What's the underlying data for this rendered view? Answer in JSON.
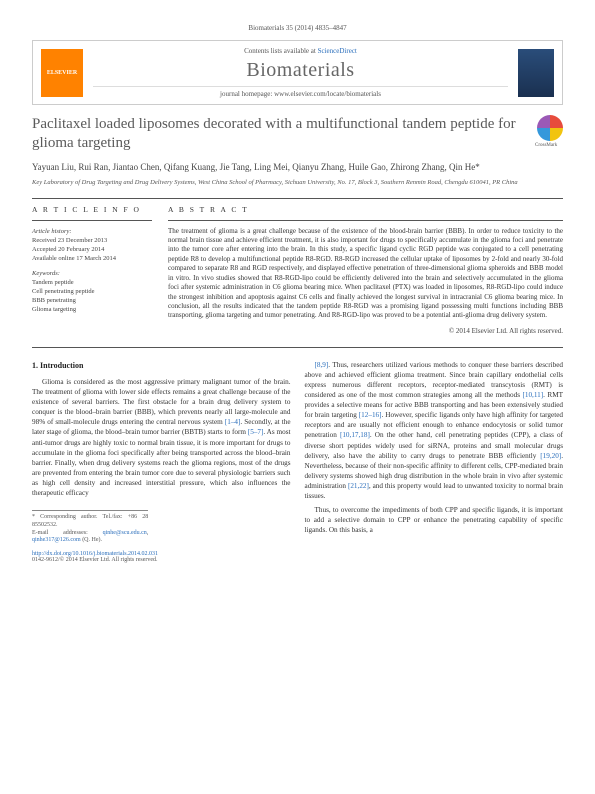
{
  "top": {
    "citation": "Biomaterials 35 (2014) 4835–4847"
  },
  "header": {
    "contents_prefix": "Contents lists available at ",
    "contents_link": "ScienceDirect",
    "journal": "Biomaterials",
    "homepage_prefix": "journal homepage: ",
    "homepage_url": "www.elsevier.com/locate/biomaterials",
    "publisher": "ELSEVIER"
  },
  "article": {
    "title": "Paclitaxel loaded liposomes decorated with a multifunctional tandem peptide for glioma targeting",
    "authors": "Yayuan Liu, Rui Ran, Jiantao Chen, Qifang Kuang, Jie Tang, Ling Mei, Qianyu Zhang, Huile Gao, Zhirong Zhang, Qin He*",
    "affiliation": "Key Laboratory of Drug Targeting and Drug Delivery Systems, West China School of Pharmacy, Sichuan University, No. 17, Block 3, Southern Renmin Road, Chengdu 610041, PR China"
  },
  "info": {
    "heading": "A R T I C L E   I N F O",
    "history_label": "Article history:",
    "received": "Received 23 December 2013",
    "accepted": "Accepted 20 February 2014",
    "online": "Available online 17 March 2014",
    "keywords_label": "Keywords:",
    "kw1": "Tandem peptide",
    "kw2": "Cell penetrating peptide",
    "kw3": "BBB penetrating",
    "kw4": "Glioma targeting"
  },
  "abstract": {
    "heading": "A B S T R A C T",
    "text": "The treatment of glioma is a great challenge because of the existence of the blood-brain barrier (BBB). In order to reduce toxicity to the normal brain tissue and achieve efficient treatment, it is also important for drugs to specifically accumulate in the glioma foci and penetrate into the tumor core after entering into the brain. In this study, a specific ligand cyclic RGD peptide was conjugated to a cell penetrating peptide R8 to develop a multifunctional peptide R8-RGD. R8-RGD increased the cellular uptake of liposomes by 2-fold and nearly 30-fold compared to separate R8 and RGD respectively, and displayed effective penetration of three-dimensional glioma spheroids and BBB model in vitro. In vivo studies showed that R8-RGD-lipo could be efficiently delivered into the brain and selectively accumulated in the glioma foci after systemic administration in C6 glioma bearing mice. When paclitaxel (PTX) was loaded in liposomes, R8-RGD-lipo could induce the strongest inhibition and apoptosis against C6 cells and finally achieved the longest survival in intracranial C6 glioma bearing mice. In conclusion, all the results indicated that the tandem peptide R8-RGD was a promising ligand possessing multi functions including BBB transporting, glioma targeting and tumor penetrating. And R8-RGD-lipo was proved to be a potential anti-glioma drug delivery system.",
    "copyright": "© 2014 Elsevier Ltd. All rights reserved."
  },
  "body": {
    "section1_head": "1. Introduction",
    "col1_p1a": "Glioma is considered as the most aggressive primary malignant tumor of the brain. The treatment of glioma with lower side effects remains a great challenge because of the existence of several barriers. The first obstacle for a brain drug delivery system to conquer is the blood–brain barrier (BBB), which prevents nearly all large-molecule and 98% of small-molecule drugs entering the central nervous system ",
    "ref1": "[1–4]",
    "col1_p1b": ". Secondly, at the later stage of glioma, the blood–brain tumor barrier (BBTB) starts to form ",
    "ref2": "[5–7]",
    "col1_p1c": ". As most anti-tumor drugs are highly toxic to normal brain tissue, it is more important for drugs to accumulate in the glioma foci specifically after being transported across the blood–brain barrier. Finally, when drug delivery systems reach the glioma regions, most of the drugs are prevented from entering the brain tumor core due to several physiologic barriers such as high cell density and increased interstitial pressure, which also influences the therapeutic efficacy",
    "ref3": "[8,9]",
    "col2_p1a": ". Thus, researchers utilized various methods to conquer these barriers described above and achieved efficient glioma treatment. Since brain capillary endothelial cells express numerous different receptors, receptor-mediated transcytosis (RMT) is considered as one of the most common strategies among all the methods ",
    "ref4": "[10,11]",
    "col2_p1b": ". RMT provides a selective means for active BBB transporting and has been extensively studied for brain targeting ",
    "ref5": "[12–16]",
    "col2_p1c": ". However, specific ligands only have high affinity for targeted receptors and are usually not efficient enough to enhance endocytosis or solid tumor penetration ",
    "ref6": "[10,17,18]",
    "col2_p1d": ". On the other hand, cell penetrating peptides (CPP), a class of diverse short peptides widely used for siRNA, proteins and small molecular drugs delivery, also have the ability to carry drugs to penetrate BBB efficiently ",
    "ref7": "[19,20]",
    "col2_p1e": ". Nevertheless, because of their non-specific affinity to different cells, CPP-mediated brain delivery systems showed high drug distribution in the whole brain in vivo after systemic administration ",
    "ref8": "[21,22]",
    "col2_p1f": ", and this property would lead to unwanted toxicity to normal brain tissues.",
    "col2_p2": "Thus, to overcome the impediments of both CPP and specific ligands, it is important to add a selective domain to CPP or enhance the penetrating capability of specific ligands. On this basis, a"
  },
  "footnote": {
    "corr": "* Corresponding author. Tel./fax: +86 28 85502532.",
    "email_label": "E-mail addresses: ",
    "email1": "qinhe@scu.edu.cn",
    "email_sep": ", ",
    "email2": "qinhe317@126.com",
    "email_suffix": " (Q. He)."
  },
  "footer": {
    "doi": "http://dx.doi.org/10.1016/j.biomaterials.2014.02.031",
    "issn": "0142-9612/© 2014 Elsevier Ltd. All rights reserved."
  }
}
